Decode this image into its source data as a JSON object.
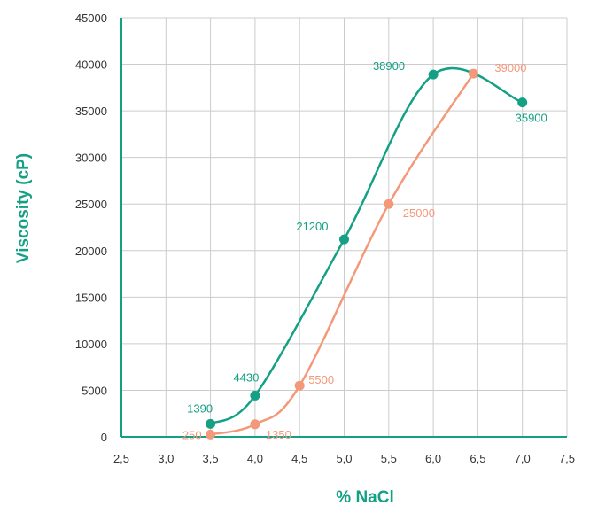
{
  "chart_data": {
    "type": "line",
    "xlabel": "% NaCl",
    "ylabel": "Viscosity (cP)",
    "xlim": [
      2.5,
      7.5
    ],
    "ylim": [
      0,
      45000
    ],
    "x_ticks": [
      "2,5",
      "3,0",
      "3,5",
      "4,0",
      "4,5",
      "5,0",
      "5,5",
      "6,0",
      "6,5",
      "7,0",
      "7,5"
    ],
    "y_ticks": [
      "0",
      "5000",
      "10000",
      "15000",
      "20000",
      "25000",
      "30000",
      "35000",
      "40000",
      "45000"
    ],
    "grid": true,
    "series": [
      {
        "color": "#14a085",
        "points": [
          {
            "x": 3.5,
            "y": 1390,
            "label": "1390"
          },
          {
            "x": 4.0,
            "y": 4430,
            "label": "4430"
          },
          {
            "x": 5.0,
            "y": 21200,
            "label": "21200"
          },
          {
            "x": 6.0,
            "y": 38900,
            "label": "38900"
          },
          {
            "x": 7.0,
            "y": 35900,
            "label": "35900"
          }
        ]
      },
      {
        "color": "#f4987a",
        "points": [
          {
            "x": 3.5,
            "y": 250,
            "label": "250"
          },
          {
            "x": 4.0,
            "y": 1350,
            "label": "1350"
          },
          {
            "x": 4.5,
            "y": 5500,
            "label": "5500"
          },
          {
            "x": 5.5,
            "y": 25000,
            "label": "25000"
          },
          {
            "x": 6.45,
            "y": 39000,
            "label": "39000"
          }
        ]
      }
    ]
  }
}
